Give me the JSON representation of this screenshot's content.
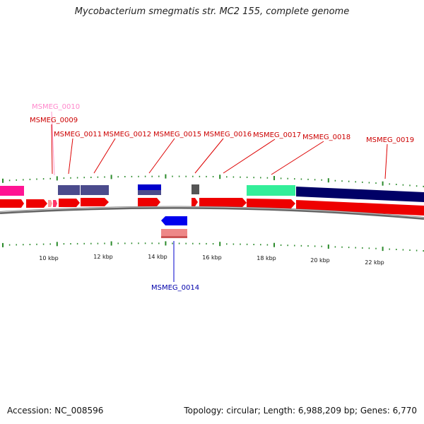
{
  "title": "Mycobacterium smegmatis str. MC2 155, complete genome",
  "footer": {
    "accession": "Accession: NC_008596",
    "topology": "Topology: circular; Length: 6,988,209 bp; Genes: 6,770"
  },
  "colors": {
    "forward_cds": "#ff0000",
    "reverse_cds": "#0000ff",
    "backbone": "#808080",
    "tick": "#228b22",
    "forward_label": "#cc0000",
    "reverse_label": "#0000aa",
    "pink_label": "#ff77bb"
  },
  "genes": [
    {
      "name": "MSMEG_0010",
      "label": "MSMEG_0010",
      "color": "#ff88cc",
      "strand": "forward"
    },
    {
      "name": "MSMEG_0009",
      "label": "MSMEG_0009",
      "color": "#cc0000",
      "strand": "forward"
    },
    {
      "name": "MSMEG_0011",
      "label": "MSMEG_0011",
      "color": "#cc0000",
      "strand": "forward"
    },
    {
      "name": "MSMEG_0012",
      "label": "MSMEG_0012",
      "color": "#cc0000",
      "strand": "forward"
    },
    {
      "name": "MSMEG_0015",
      "label": "MSMEG_0015",
      "color": "#cc0000",
      "strand": "forward"
    },
    {
      "name": "MSMEG_0016",
      "label": "MSMEG_0016",
      "color": "#cc0000",
      "strand": "forward"
    },
    {
      "name": "MSMEG_0017",
      "label": "MSMEG_0017",
      "color": "#cc0000",
      "strand": "forward"
    },
    {
      "name": "MSMEG_0018",
      "label": "MSMEG_0018",
      "color": "#cc0000",
      "strand": "forward"
    },
    {
      "name": "MSMEG_0019",
      "label": "MSMEG_0019",
      "color": "#cc0000",
      "strand": "forward"
    },
    {
      "name": "MSMEG_0014",
      "label": "MSMEG_0014",
      "color": "#0000aa",
      "strand": "reverse"
    }
  ],
  "scale_labels": [
    "10 kbp",
    "12 kbp",
    "14 kbp",
    "16 kbp",
    "18 kbp",
    "20 kbp",
    "22 kbp"
  ]
}
